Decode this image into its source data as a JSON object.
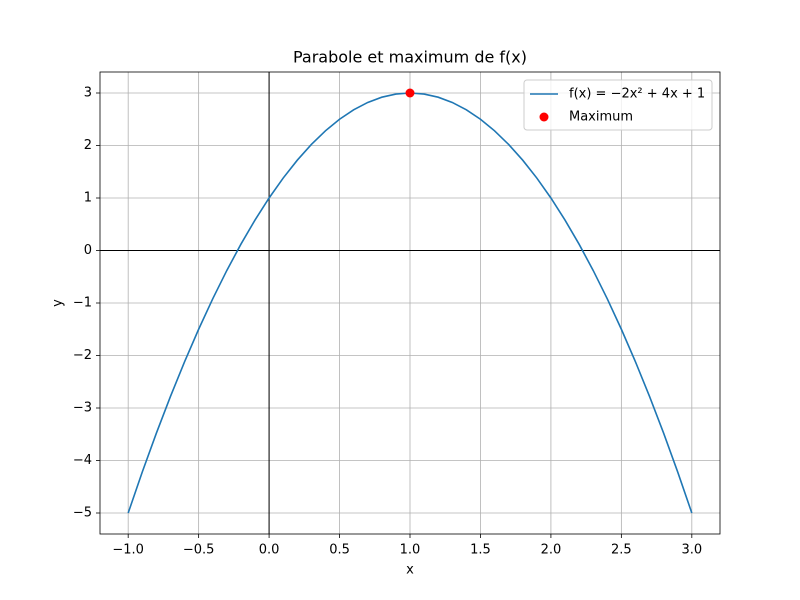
{
  "chart_data": {
    "type": "line",
    "title": "Parabole et maximum de f(x)",
    "x_label": "x",
    "y_label": "y",
    "xlim": [
      -1.2,
      3.2
    ],
    "ylim": [
      -5.4,
      3.4
    ],
    "xticks": [
      {
        "value": -1,
        "label": "−1.0"
      },
      {
        "value": -0.5,
        "label": "−0.5"
      },
      {
        "value": 0,
        "label": "0.0"
      },
      {
        "value": 0.5,
        "label": "0.5"
      },
      {
        "value": 1,
        "label": "1.0"
      },
      {
        "value": 1.5,
        "label": "1.5"
      },
      {
        "value": 2,
        "label": "2.0"
      },
      {
        "value": 2.5,
        "label": "2.5"
      },
      {
        "value": 3,
        "label": "3.0"
      }
    ],
    "yticks": [
      {
        "value": -5,
        "label": "−5"
      },
      {
        "value": -4,
        "label": "−4"
      },
      {
        "value": -3,
        "label": "−3"
      },
      {
        "value": -2,
        "label": "−2"
      },
      {
        "value": -1,
        "label": "−1"
      },
      0,
      1,
      2,
      3
    ],
    "grid": true,
    "reference_lines": {
      "x": 0,
      "y": 0
    },
    "legend": "upper right",
    "series": [
      {
        "name": "f(x) = −2x² + 4x + 1",
        "style": "line",
        "color": "#1f77b4",
        "x": [
          -1,
          -0.9,
          -0.8,
          -0.7,
          -0.6,
          -0.5,
          -0.4,
          -0.3,
          -0.2,
          -0.1,
          0,
          0.1,
          0.2,
          0.3,
          0.4,
          0.5,
          0.6,
          0.7,
          0.8,
          0.9,
          1,
          1.1,
          1.2,
          1.3,
          1.4,
          1.5,
          1.6,
          1.7,
          1.8,
          1.9,
          2,
          2.1,
          2.2,
          2.3,
          2.4,
          2.5,
          2.6,
          2.7,
          2.8,
          2.9,
          3
        ],
        "values": [
          -5,
          -4.22,
          -3.48,
          -2.78,
          -2.12,
          -1.5,
          -0.92,
          -0.38,
          0.12,
          0.58,
          1,
          1.38,
          1.72,
          2.02,
          2.28,
          2.5,
          2.68,
          2.82,
          2.92,
          2.98,
          3,
          2.98,
          2.92,
          2.82,
          2.68,
          2.5,
          2.28,
          2.02,
          1.72,
          1.38,
          1,
          0.58,
          0.12,
          -0.38,
          -0.92,
          -1.5,
          -2.12,
          -2.78,
          -3.48,
          -4.22,
          -5
        ]
      },
      {
        "name": "Maximum",
        "style": "marker",
        "color": "#ff0000",
        "x": [
          1
        ],
        "values": [
          3
        ]
      }
    ]
  }
}
